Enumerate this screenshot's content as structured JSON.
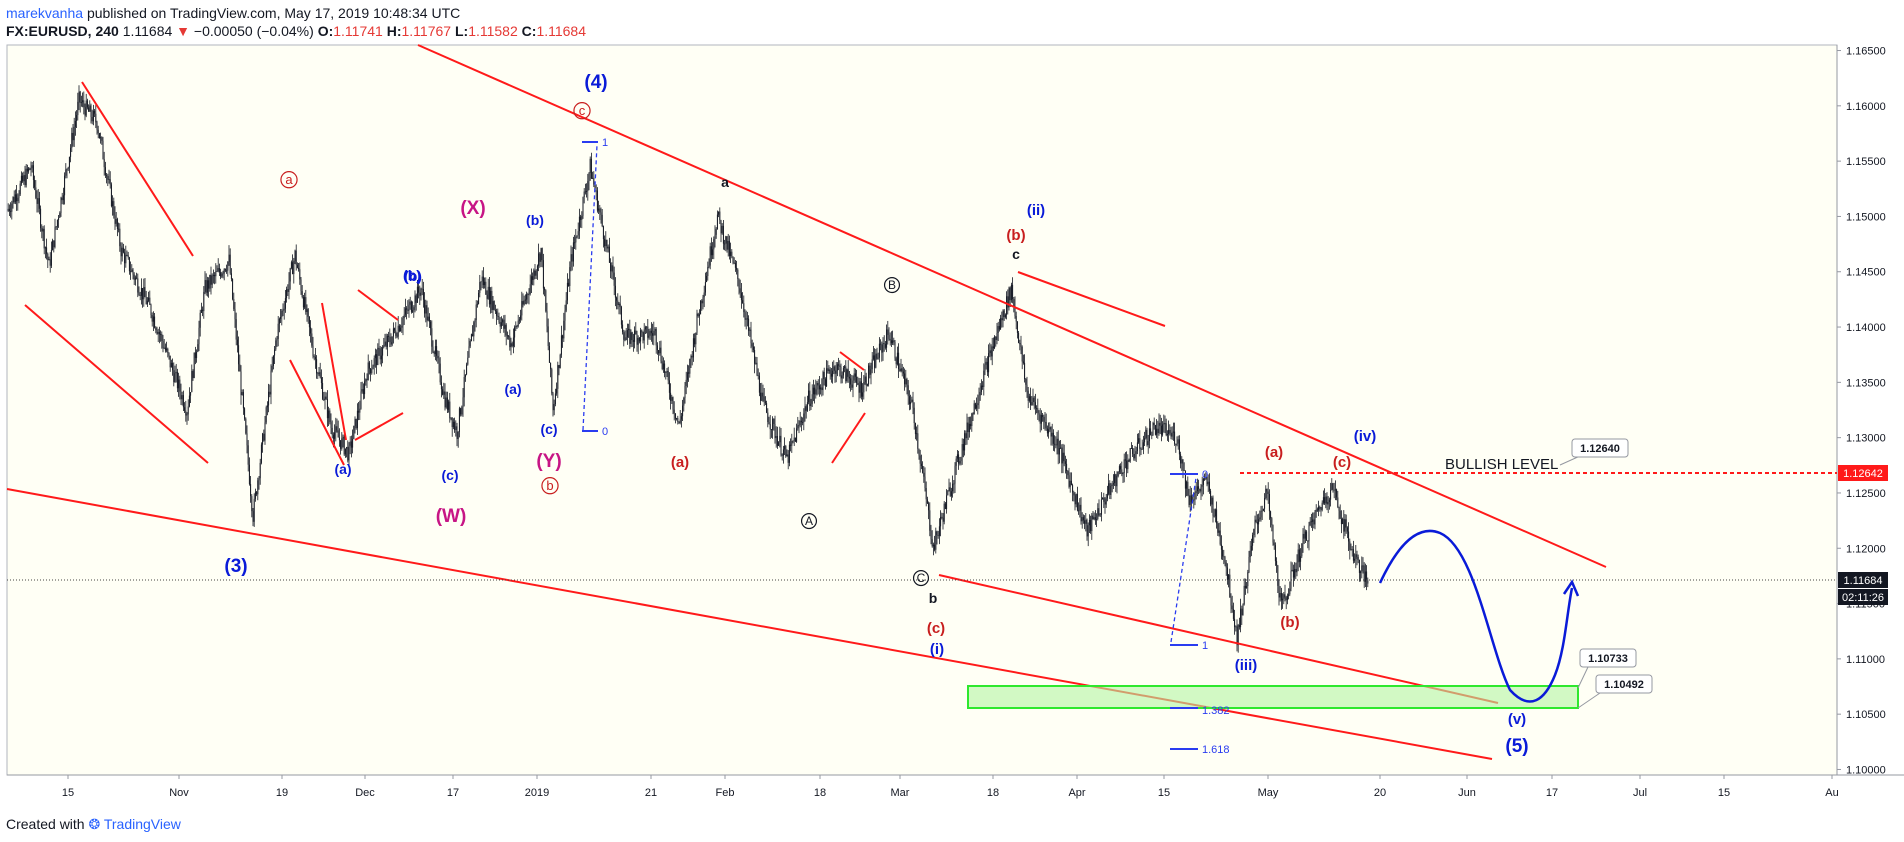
{
  "header": {
    "author": "marekvanha",
    "published_text": "published on TradingView.com, May 17, 2019 10:48:34 UTC",
    "symbol": "FX:EURUSD, 240",
    "last": "1.11684",
    "arrow": "▼",
    "change": "−0.00050 (−0.04%)",
    "o_label": "O:",
    "o_value": "1.11741",
    "h_label": "H:",
    "h_value": "1.11767",
    "l_label": "L:",
    "l_value": "1.11582",
    "c_label": "C:",
    "c_value": "1.11684"
  },
  "footer": {
    "created_with": "Created with",
    "brand": "TradingView"
  },
  "colors": {
    "background": "#fffff5",
    "candle": "#131722",
    "trend_line": "#ff1a1a",
    "wave_blue": "#0a1bd8",
    "wave_red": "#c81e1e",
    "wave_magenta": "#c71585",
    "zone_fill": "#b4f5a3",
    "zone_stroke": "#2ee82e",
    "projection": "#0a1bd8"
  },
  "chart_data": {
    "type": "candlestick",
    "symbol": "FX:EURUSD",
    "timeframe": "240",
    "ylim": [
      1.0995,
      1.1655
    ],
    "y_ticks": [
      "1.16500",
      "1.16000",
      "1.15500",
      "1.15000",
      "1.14500",
      "1.14000",
      "1.13500",
      "1.13000",
      "1.12500",
      "1.12000",
      "1.11500",
      "1.11000",
      "1.10500",
      "1.10000"
    ],
    "x_ticks": [
      "15",
      "Nov",
      "19",
      "Dec",
      "17",
      "2019",
      "21",
      "Feb",
      "18",
      "Mar",
      "18",
      "Apr",
      "15",
      "May",
      "20",
      "Jun",
      "17",
      "Jul",
      "15",
      "Au"
    ],
    "price_path": [
      [
        0,
        1.1505
      ],
      [
        20,
        1.1545
      ],
      [
        35,
        1.1455
      ],
      [
        60,
        1.1605
      ],
      [
        75,
        1.1585
      ],
      [
        95,
        1.147
      ],
      [
        120,
        1.1415
      ],
      [
        150,
        1.1325
      ],
      [
        165,
        1.1435
      ],
      [
        185,
        1.146
      ],
      [
        205,
        1.123
      ],
      [
        225,
        1.1395
      ],
      [
        240,
        1.1465
      ],
      [
        255,
        1.138
      ],
      [
        270,
        1.131
      ],
      [
        285,
        1.1285
      ],
      [
        300,
        1.136
      ],
      [
        320,
        1.139
      ],
      [
        345,
        1.1435
      ],
      [
        365,
        1.1335
      ],
      [
        375,
        1.1305
      ],
      [
        395,
        1.1445
      ],
      [
        420,
        1.1385
      ],
      [
        445,
        1.147
      ],
      [
        455,
        1.1325
      ],
      [
        470,
        1.146
      ],
      [
        486,
        1.1545
      ],
      [
        500,
        1.147
      ],
      [
        515,
        1.139
      ],
      [
        540,
        1.1395
      ],
      [
        560,
        1.131
      ],
      [
        575,
        1.1405
      ],
      [
        592,
        1.15
      ],
      [
        610,
        1.144
      ],
      [
        630,
        1.133
      ],
      [
        650,
        1.128
      ],
      [
        668,
        1.1335
      ],
      [
        690,
        1.1365
      ],
      [
        712,
        1.1345
      ],
      [
        735,
        1.1395
      ],
      [
        755,
        1.1325
      ],
      [
        772,
        1.12
      ],
      [
        790,
        1.127
      ],
      [
        812,
        1.135
      ],
      [
        837,
        1.1435
      ],
      [
        850,
        1.134
      ],
      [
        875,
        1.1295
      ],
      [
        900,
        1.1215
      ],
      [
        930,
        1.1275
      ],
      [
        957,
        1.131
      ],
      [
        975,
        1.13
      ],
      [
        985,
        1.1245
      ],
      [
        1000,
        1.126
      ],
      [
        1015,
        1.119
      ],
      [
        1025,
        1.112
      ],
      [
        1040,
        1.122
      ],
      [
        1050,
        1.125
      ],
      [
        1062,
        1.1145
      ],
      [
        1080,
        1.1205
      ],
      [
        1095,
        1.124
      ],
      [
        1105,
        1.1255
      ],
      [
        1120,
        1.12
      ],
      [
        1134,
        1.1168
      ]
    ],
    "last_price": "1.11684",
    "countdown": "02:11:26",
    "bullish_level": "1.12642",
    "bullish_level_text": "BULLISH LEVEL",
    "callouts": [
      "1.12640",
      "1.10733",
      "1.10492"
    ],
    "fib_labels": [
      "1",
      "0",
      "0",
      "1",
      "1.382",
      "1.618"
    ],
    "wave_labels": [
      {
        "text": "(4)",
        "color": "blue"
      },
      {
        "text": "(3)",
        "color": "blue"
      },
      {
        "text": "(5)",
        "color": "blue"
      },
      {
        "text": "(W)",
        "color": "magenta"
      },
      {
        "text": "(X)",
        "color": "magenta"
      },
      {
        "text": "(Y)",
        "color": "magenta"
      },
      {
        "text": "a",
        "color": "red",
        "circled": true
      },
      {
        "text": "b",
        "color": "red",
        "circled": true
      },
      {
        "text": "c",
        "color": "red",
        "circled": true
      },
      {
        "text": "(a)",
        "color": "blue"
      },
      {
        "text": "(b)",
        "color": "blue"
      },
      {
        "text": "(c)",
        "color": "blue"
      },
      {
        "text": "(b)",
        "color": "blue"
      },
      {
        "text": "(a)",
        "color": "blue"
      },
      {
        "text": "(b)",
        "color": "blue"
      },
      {
        "text": "(c)",
        "color": "blue"
      },
      {
        "text": "a",
        "color": "black"
      },
      {
        "text": "b",
        "color": "black"
      },
      {
        "text": "c",
        "color": "black"
      },
      {
        "text": "A",
        "color": "black",
        "circled": true
      },
      {
        "text": "B",
        "color": "black",
        "circled": true
      },
      {
        "text": "C",
        "color": "black",
        "circled": true
      },
      {
        "text": "(a)",
        "color": "red"
      },
      {
        "text": "(b)",
        "color": "red"
      },
      {
        "text": "(c)",
        "color": "red"
      },
      {
        "text": "(i)",
        "color": "blue"
      },
      {
        "text": "(ii)",
        "color": "blue"
      },
      {
        "text": "(iii)",
        "color": "blue"
      },
      {
        "text": "(iv)",
        "color": "blue"
      },
      {
        "text": "(v)",
        "color": "blue"
      },
      {
        "text": "(a)",
        "color": "red"
      },
      {
        "text": "(b)",
        "color": "red"
      },
      {
        "text": "(c)",
        "color": "red"
      }
    ],
    "target_zone": [
      1.1049,
      1.1073
    ]
  }
}
